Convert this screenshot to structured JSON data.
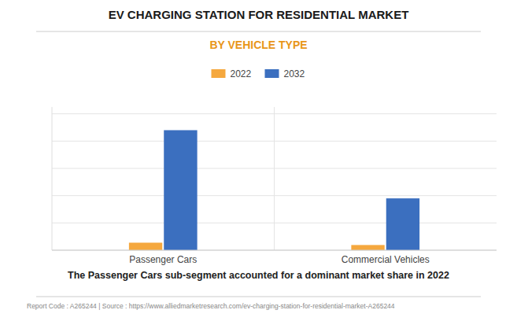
{
  "chart_data": {
    "type": "bar",
    "title": "EV CHARGING STATION FOR RESIDENTIAL MARKET",
    "subtitle": "BY VEHICLE TYPE",
    "categories": [
      "Passenger Cars",
      "Commercial Vehicles"
    ],
    "series": [
      {
        "name": "2022",
        "color": "#F5A83E",
        "values": [
          0.055,
          0.038
        ]
      },
      {
        "name": "2032",
        "color": "#3B6FBF",
        "values": [
          0.88,
          0.38
        ]
      }
    ],
    "ylim": [
      0,
      1.05
    ],
    "yticks": [
      0,
      0.2,
      0.4,
      0.6,
      0.8,
      1.0
    ],
    "grid": true,
    "tick_labels": "x",
    "legend": "top",
    "annotations": [
      "The Passenger Cars sub-segment accounted for a dominant market share in 2022",
      "Report Code : A265244  |  Source : https://www.alliedmarketresearch.com/ev-charging-station-for-residential-market-A265244"
    ]
  }
}
